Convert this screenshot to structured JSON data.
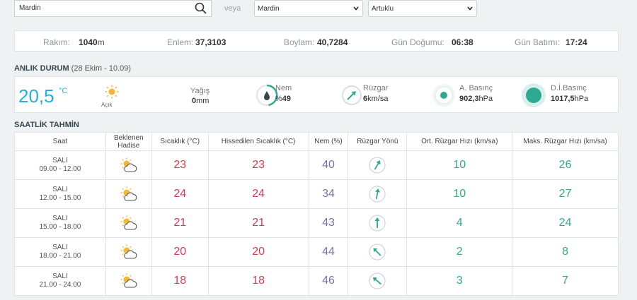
{
  "search": {
    "value": "Mardin",
    "icon": "search-icon"
  },
  "veya": "veya",
  "province_select": {
    "value": "Mardin"
  },
  "district_select": {
    "value": "Artuklu"
  },
  "info": {
    "rakim_label": "Rakım:",
    "rakim_value": "1040",
    "rakim_unit": "m",
    "enlem_label": "Enlem:",
    "enlem_value": "37,3103",
    "boylam_label": "Boylam:",
    "boylam_value": "40,7284",
    "dogumu_label": "Gün Doğumu:",
    "dogumu_value": "06:38",
    "batimi_label": "Gün Batımı:",
    "batimi_value": "17:24"
  },
  "current": {
    "heading": "ANLIK DURUM",
    "heading_sub": "(28 Ekim - 10.09)",
    "temperature": "20,5",
    "temp_unit": "°C",
    "condition": "Açık",
    "yagis_label": "Yağış",
    "yagis_value": "0",
    "yagis_unit": "mm",
    "nem_label": "Nem",
    "nem_prefix": "%",
    "nem_value": "49",
    "ruzgar_label": "Rüzgar",
    "ruzgar_value": "6",
    "ruzgar_unit": "km/sa",
    "a_basinc_label": "A. Basınç",
    "a_basinc_value": "902,3",
    "a_basinc_unit": "hPa",
    "di_basinc_label": "D.İ.Basınç",
    "di_basinc_value": "1017,5",
    "di_basinc_unit": "hPa"
  },
  "hourly": {
    "heading": "SAATLİK TAHMİN",
    "headers": [
      "Saat",
      "Beklenen\nHadise",
      "Sıcaklık (°C)",
      "Hissedilen Sıcaklık (°C)",
      "Nem (%)",
      "Rüzgar Yönü",
      "Ort. Rüzgar Hızı (km/sa)",
      "Maks. Rüzgar Hızı (km/sa)"
    ],
    "rows": [
      {
        "day": "SALI",
        "range": "09.00 - 12.00",
        "temp": "23",
        "feels": "23",
        "humidity": "40",
        "wind_dir_deg": 30,
        "avg_wind": "10",
        "max_wind": "26"
      },
      {
        "day": "SALI",
        "range": "12.00 - 15.00",
        "temp": "24",
        "feels": "24",
        "humidity": "34",
        "wind_dir_deg": 10,
        "avg_wind": "10",
        "max_wind": "27"
      },
      {
        "day": "SALI",
        "range": "15.00 - 18.00",
        "temp": "21",
        "feels": "21",
        "humidity": "43",
        "wind_dir_deg": 0,
        "avg_wind": "4",
        "max_wind": "24"
      },
      {
        "day": "SALI",
        "range": "18.00 - 21.00",
        "temp": "20",
        "feels": "20",
        "humidity": "44",
        "wind_dir_deg": -45,
        "avg_wind": "2",
        "max_wind": "8"
      },
      {
        "day": "SALI",
        "range": "21.00 - 24.00",
        "temp": "18",
        "feels": "18",
        "humidity": "46",
        "wind_dir_deg": -50,
        "avg_wind": "3",
        "max_wind": "7"
      }
    ]
  },
  "colors": {
    "accent": "#29aee0",
    "temp_red": "#d93a4e",
    "humidity_purple": "#7a70a8",
    "wind_teal": "#2eaa91"
  }
}
